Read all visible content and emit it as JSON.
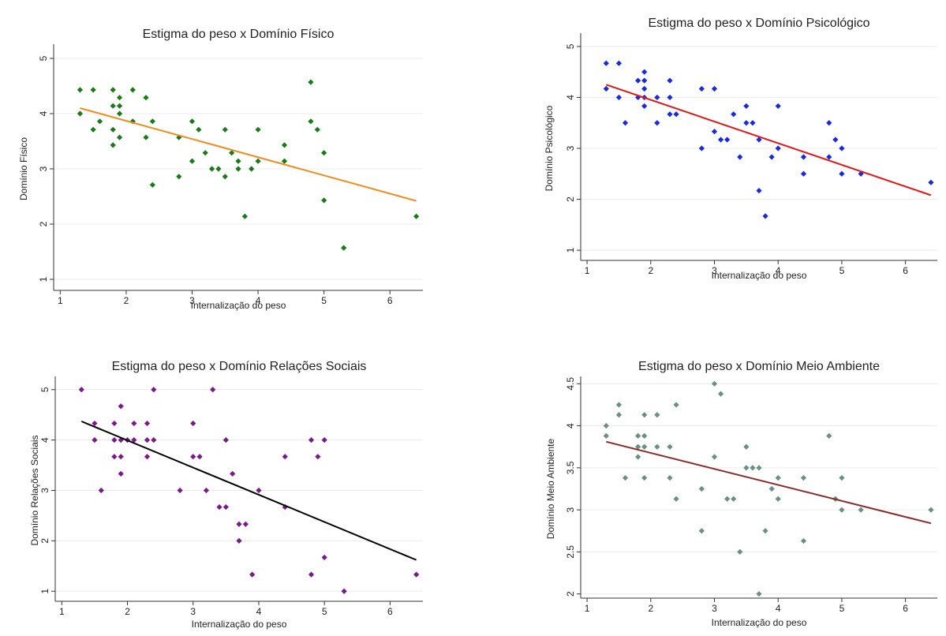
{
  "chart_data": [
    {
      "type": "scatter",
      "title": "Estigma do peso x Domínio Físico",
      "xlabel": "Internalização do peso",
      "ylabel": "Domínio Físico",
      "xlim": [
        0.9,
        6.5
      ],
      "ylim": [
        0.8,
        5.2
      ],
      "xticks": [
        1,
        2,
        3,
        4,
        5,
        6
      ],
      "yticks": [
        1,
        2,
        3,
        4,
        5
      ],
      "grid": true,
      "legend": "none",
      "point_color": "#1a7a1a",
      "line_color": "#f08c1e",
      "fit_line": [
        [
          1.3,
          4.1
        ],
        [
          6.4,
          2.42
        ]
      ],
      "points": [
        [
          1.3,
          4.43
        ],
        [
          1.3,
          4.0
        ],
        [
          1.5,
          4.43
        ],
        [
          1.5,
          3.71
        ],
        [
          1.6,
          3.86
        ],
        [
          1.8,
          4.43
        ],
        [
          1.8,
          4.14
        ],
        [
          1.8,
          3.71
        ],
        [
          1.8,
          3.43
        ],
        [
          1.9,
          4.29
        ],
        [
          1.9,
          4.14
        ],
        [
          1.9,
          4.0
        ],
        [
          1.9,
          3.57
        ],
        [
          2.1,
          4.43
        ],
        [
          2.1,
          3.86
        ],
        [
          2.3,
          4.29
        ],
        [
          2.3,
          3.57
        ],
        [
          2.4,
          3.86
        ],
        [
          2.4,
          2.71
        ],
        [
          2.8,
          3.57
        ],
        [
          2.8,
          2.86
        ],
        [
          3.0,
          3.86
        ],
        [
          3.0,
          3.14
        ],
        [
          3.1,
          3.71
        ],
        [
          3.2,
          3.29
        ],
        [
          3.3,
          3.0
        ],
        [
          3.4,
          3.0
        ],
        [
          3.5,
          3.71
        ],
        [
          3.5,
          2.86
        ],
        [
          3.6,
          3.29
        ],
        [
          3.7,
          3.14
        ],
        [
          3.7,
          3.0
        ],
        [
          3.8,
          2.14
        ],
        [
          3.9,
          3.0
        ],
        [
          4.0,
          3.71
        ],
        [
          4.0,
          3.14
        ],
        [
          4.4,
          3.43
        ],
        [
          4.4,
          3.14
        ],
        [
          4.8,
          4.57
        ],
        [
          4.8,
          3.86
        ],
        [
          4.9,
          3.71
        ],
        [
          5.0,
          3.29
        ],
        [
          5.0,
          2.43
        ],
        [
          5.3,
          1.57
        ],
        [
          6.4,
          2.14
        ]
      ]
    },
    {
      "type": "scatter",
      "title": "Estigma do peso x Domínio Psicológico",
      "xlabel": "Internalização do peso",
      "ylabel": "Domínio Psicológico",
      "xlim": [
        0.9,
        6.5
      ],
      "ylim": [
        0.8,
        5.2
      ],
      "xticks": [
        1,
        2,
        3,
        4,
        5,
        6
      ],
      "yticks": [
        1,
        2,
        3,
        4,
        5
      ],
      "grid": true,
      "legend": "none",
      "point_color": "#1a2ad8",
      "line_color": "#e01818",
      "fit_line": [
        [
          1.3,
          4.25
        ],
        [
          6.4,
          2.08
        ]
      ],
      "points": [
        [
          1.3,
          4.67
        ],
        [
          1.3,
          4.17
        ],
        [
          1.5,
          4.67
        ],
        [
          1.5,
          4.0
        ],
        [
          1.6,
          3.5
        ],
        [
          1.8,
          4.33
        ],
        [
          1.8,
          4.0
        ],
        [
          1.9,
          4.5
        ],
        [
          1.9,
          4.33
        ],
        [
          1.9,
          4.17
        ],
        [
          1.9,
          4.0
        ],
        [
          1.9,
          3.83
        ],
        [
          2.1,
          4.0
        ],
        [
          2.1,
          3.5
        ],
        [
          2.3,
          4.33
        ],
        [
          2.3,
          4.0
        ],
        [
          2.3,
          3.67
        ],
        [
          2.4,
          3.67
        ],
        [
          2.8,
          4.17
        ],
        [
          2.8,
          3.0
        ],
        [
          3.0,
          4.17
        ],
        [
          3.0,
          3.33
        ],
        [
          3.1,
          3.17
        ],
        [
          3.2,
          3.17
        ],
        [
          3.3,
          3.67
        ],
        [
          3.4,
          2.83
        ],
        [
          3.5,
          3.83
        ],
        [
          3.5,
          3.5
        ],
        [
          3.6,
          3.5
        ],
        [
          3.7,
          3.17
        ],
        [
          3.7,
          2.17
        ],
        [
          3.8,
          1.67
        ],
        [
          3.9,
          2.83
        ],
        [
          4.0,
          3.83
        ],
        [
          4.0,
          3.0
        ],
        [
          4.4,
          2.83
        ],
        [
          4.4,
          2.5
        ],
        [
          4.8,
          3.5
        ],
        [
          4.8,
          2.83
        ],
        [
          4.9,
          3.17
        ],
        [
          5.0,
          3.0
        ],
        [
          5.0,
          2.5
        ],
        [
          5.3,
          2.5
        ],
        [
          6.4,
          2.33
        ]
      ]
    },
    {
      "type": "scatter",
      "title": "Estigma do peso x Domínio Relações Sociais",
      "xlabel": "Internalização do peso",
      "ylabel": "Domínio Relações Sociais",
      "xlim": [
        0.9,
        6.5
      ],
      "ylim": [
        0.8,
        5.2
      ],
      "xticks": [
        1,
        2,
        3,
        4,
        5,
        6
      ],
      "yticks": [
        1,
        2,
        3,
        4,
        5
      ],
      "grid": true,
      "legend": "none",
      "point_color": "#7a1a8a",
      "line_color": "#000000",
      "fit_line": [
        [
          1.3,
          4.37
        ],
        [
          6.4,
          1.62
        ]
      ],
      "points": [
        [
          1.3,
          5.0
        ],
        [
          1.5,
          4.33
        ],
        [
          1.5,
          4.0
        ],
        [
          1.6,
          3.0
        ],
        [
          1.8,
          4.33
        ],
        [
          1.8,
          4.0
        ],
        [
          1.8,
          3.67
        ],
        [
          1.9,
          4.67
        ],
        [
          1.9,
          4.0
        ],
        [
          1.9,
          3.67
        ],
        [
          1.9,
          3.33
        ],
        [
          2.0,
          4.0
        ],
        [
          2.1,
          4.33
        ],
        [
          2.1,
          4.0
        ],
        [
          2.3,
          4.33
        ],
        [
          2.3,
          4.0
        ],
        [
          2.3,
          3.67
        ],
        [
          2.4,
          5.0
        ],
        [
          2.4,
          4.0
        ],
        [
          2.8,
          3.0
        ],
        [
          3.0,
          4.33
        ],
        [
          3.0,
          3.67
        ],
        [
          3.1,
          3.67
        ],
        [
          3.2,
          3.0
        ],
        [
          3.3,
          5.0
        ],
        [
          3.4,
          2.67
        ],
        [
          3.5,
          4.0
        ],
        [
          3.5,
          2.67
        ],
        [
          3.6,
          3.33
        ],
        [
          3.7,
          2.33
        ],
        [
          3.7,
          2.0
        ],
        [
          3.8,
          2.33
        ],
        [
          3.9,
          1.33
        ],
        [
          4.0,
          3.0
        ],
        [
          4.4,
          3.67
        ],
        [
          4.4,
          2.67
        ],
        [
          4.8,
          4.0
        ],
        [
          4.8,
          1.33
        ],
        [
          4.9,
          3.67
        ],
        [
          5.0,
          4.0
        ],
        [
          5.0,
          1.67
        ],
        [
          5.3,
          1.0
        ],
        [
          6.4,
          1.33
        ]
      ]
    },
    {
      "type": "scatter",
      "title": "Estigma do peso x Domínio Meio Ambiente",
      "xlabel": "Internalização do peso",
      "ylabel": "Domínio Meio Ambiente",
      "xlim": [
        0.9,
        6.5
      ],
      "ylim": [
        1.95,
        4.55
      ],
      "xticks": [
        1,
        2,
        3,
        4,
        5,
        6
      ],
      "yticks": [
        2,
        2.5,
        3,
        3.5,
        4,
        4.5
      ],
      "grid": true,
      "legend": "none",
      "point_color": "#6b8e86",
      "line_color": "#8b2a2a",
      "fit_line": [
        [
          1.3,
          3.81
        ],
        [
          6.4,
          2.84
        ]
      ],
      "points": [
        [
          1.3,
          4.0
        ],
        [
          1.3,
          3.88
        ],
        [
          1.5,
          4.25
        ],
        [
          1.5,
          4.13
        ],
        [
          1.6,
          3.38
        ],
        [
          1.8,
          3.88
        ],
        [
          1.8,
          3.75
        ],
        [
          1.8,
          3.63
        ],
        [
          1.9,
          4.13
        ],
        [
          1.9,
          3.88
        ],
        [
          1.9,
          3.75
        ],
        [
          1.9,
          3.38
        ],
        [
          2.1,
          4.13
        ],
        [
          2.1,
          3.75
        ],
        [
          2.3,
          3.75
        ],
        [
          2.3,
          3.38
        ],
        [
          2.4,
          4.25
        ],
        [
          2.4,
          3.13
        ],
        [
          2.8,
          3.25
        ],
        [
          2.8,
          2.75
        ],
        [
          3.0,
          4.5
        ],
        [
          3.0,
          3.63
        ],
        [
          3.1,
          4.38
        ],
        [
          3.2,
          3.13
        ],
        [
          3.3,
          3.13
        ],
        [
          3.4,
          2.5
        ],
        [
          3.5,
          3.75
        ],
        [
          3.5,
          3.5
        ],
        [
          3.6,
          3.5
        ],
        [
          3.7,
          3.5
        ],
        [
          3.7,
          2.0
        ],
        [
          3.8,
          2.75
        ],
        [
          3.9,
          3.25
        ],
        [
          4.0,
          3.38
        ],
        [
          4.0,
          3.13
        ],
        [
          4.4,
          3.38
        ],
        [
          4.4,
          2.63
        ],
        [
          4.8,
          3.88
        ],
        [
          4.9,
          3.13
        ],
        [
          5.0,
          3.38
        ],
        [
          5.0,
          3.0
        ],
        [
          5.3,
          3.0
        ],
        [
          6.4,
          3.0
        ]
      ]
    }
  ]
}
